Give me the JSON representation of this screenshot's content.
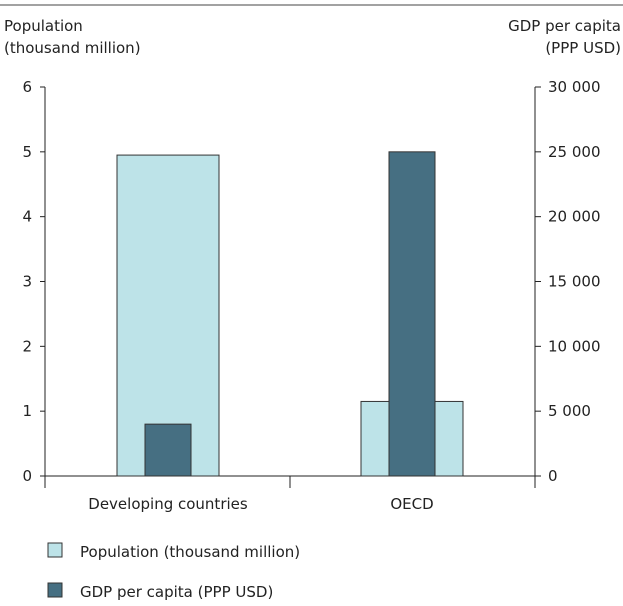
{
  "chart_data": {
    "type": "bar",
    "categories": [
      "Developing countries",
      "OECD"
    ],
    "left_axis": {
      "label_line1": "Population",
      "label_line2": "(thousand million)",
      "ylim": [
        0,
        6
      ],
      "ticks": [
        "0",
        "1",
        "2",
        "3",
        "4",
        "5",
        "6"
      ]
    },
    "right_axis": {
      "label_line1": "GDP per capita",
      "label_line2": "(PPP USD)",
      "ylim": [
        0,
        30000
      ],
      "ticks": [
        "0",
        "5 000",
        "10 000",
        "15 000",
        "20 000",
        "25 000",
        "30 000"
      ]
    },
    "series": [
      {
        "name": "Population (thousand million)",
        "axis": "left",
        "color": "#bde3e8",
        "values": [
          4.95,
          1.15
        ]
      },
      {
        "name": "GDP per capita (PPP USD)",
        "axis": "right",
        "color": "#466f82",
        "values": [
          4000,
          25000
        ]
      }
    ],
    "grid": false,
    "legend_position": "bottom-left"
  }
}
